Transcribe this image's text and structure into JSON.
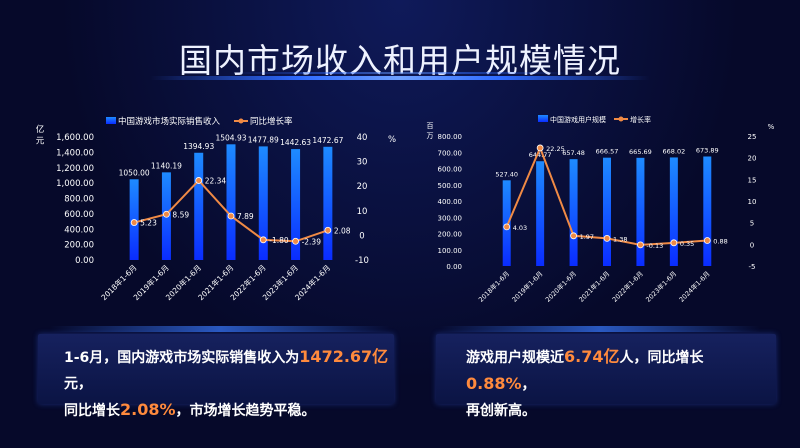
{
  "page_title": "国内市场收入和用户规模情况",
  "colors": {
    "bar_top": "#1e8bff",
    "bar_bottom": "#0a2cff",
    "line": "#f08a45",
    "point_fill": "#ffffff"
  },
  "chart_data": [
    {
      "type": "bar",
      "legend": [
        "中国游戏市场实际销售收入",
        "同比增长率"
      ],
      "ylabel": "亿元",
      "y2label": "%",
      "categories": [
        "2018年1-6月",
        "2019年1-6月",
        "2020年1-6月",
        "2021年1-6月",
        "2022年1-6月",
        "2023年1-6月",
        "2024年1-6月"
      ],
      "series": [
        {
          "name": "中国游戏市场实际销售收入",
          "axis": "left",
          "values": [
            1050.0,
            1140.19,
            1394.93,
            1504.93,
            1477.89,
            1442.63,
            1472.67
          ],
          "labels": [
            "1050.00",
            "1140.19",
            "1394.93",
            "1504.93",
            "1477.89",
            "1442.63",
            "1472.67"
          ]
        },
        {
          "name": "同比增长率",
          "type": "line",
          "axis": "right",
          "values": [
            5.23,
            8.59,
            22.34,
            7.89,
            -1.8,
            -2.39,
            2.08
          ],
          "labels": [
            "5.23",
            "8.59",
            "22.34",
            "7.89",
            "-1.80",
            "-2.39",
            "2.08"
          ]
        }
      ],
      "ylim": [
        0,
        1600
      ],
      "yticks": [
        "0.00",
        "200.00",
        "400.00",
        "600.00",
        "800.00",
        "1,000.00",
        "1,200.00",
        "1,400.00",
        "1,600.00"
      ],
      "y2lim": [
        -10,
        40
      ],
      "y2ticks": [
        "-10",
        "0",
        "10",
        "20",
        "30",
        "40"
      ],
      "legend_position": "top"
    },
    {
      "type": "bar",
      "legend": [
        "中国游戏用户规模",
        "增长率"
      ],
      "ylabel": "百万",
      "y2label": "%",
      "categories": [
        "2018年1-6月",
        "2019年1-6月",
        "2020年1-6月",
        "2021年1-6月",
        "2022年1-6月",
        "2023年1-6月",
        "2024年1-6月"
      ],
      "series": [
        {
          "name": "中国游戏用户规模",
          "axis": "left",
          "values": [
            527.4,
            644.77,
            657.48,
            666.57,
            665.69,
            668.02,
            673.89
          ],
          "labels": [
            "527.40",
            "644.77",
            "657.48",
            "666.57",
            "665.69",
            "668.02",
            "673.89"
          ]
        },
        {
          "name": "增长率",
          "type": "line",
          "axis": "right",
          "values": [
            4.03,
            22.25,
            1.97,
            1.38,
            -0.13,
            0.35,
            0.88
          ],
          "labels": [
            "4.03",
            "22.25",
            "1.97",
            "1.38",
            "-0.13",
            "0.35",
            "0.88"
          ]
        }
      ],
      "ylim": [
        0,
        800
      ],
      "yticks": [
        "0.00",
        "100.00",
        "200.00",
        "300.00",
        "400.00",
        "500.00",
        "600.00",
        "700.00",
        "800.00"
      ],
      "y2lim": [
        -5,
        25
      ],
      "y2ticks": [
        "-5",
        "0",
        "5",
        "10",
        "15",
        "20",
        "25"
      ],
      "legend_position": "top"
    }
  ],
  "summary_left": {
    "p1": "1-6月，国内游戏市场实际销售收入为",
    "h1": "1472.67亿",
    "p2": "元，",
    "p3": "同比增长",
    "h2": "2.08%",
    "p4": "，市场增长趋势平稳。"
  },
  "summary_right": {
    "p1": "游戏用户规模近",
    "h1": "6.74亿",
    "p2": "人，同比增长",
    "h2": "0.88%",
    "p3": "，",
    "p4": "再创新高。"
  }
}
